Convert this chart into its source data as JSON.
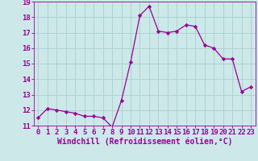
{
  "x": [
    0,
    1,
    2,
    3,
    4,
    5,
    6,
    7,
    8,
    9,
    10,
    11,
    12,
    13,
    14,
    15,
    16,
    17,
    18,
    19,
    20,
    21,
    22,
    23
  ],
  "y": [
    11.5,
    12.1,
    12.0,
    11.9,
    11.8,
    11.6,
    11.6,
    11.5,
    10.9,
    12.6,
    15.1,
    18.1,
    18.7,
    17.1,
    17.0,
    17.1,
    17.5,
    17.4,
    16.2,
    16.0,
    15.3,
    15.3,
    13.2,
    13.5
  ],
  "line_color": "#990099",
  "marker": "D",
  "marker_size": 2.2,
  "bg_color": "#cce8e8",
  "grid_color": "#aad0d0",
  "xlabel": "Windchill (Refroidissement éolien,°C)",
  "ylim": [
    11,
    19
  ],
  "xlim_min": -0.5,
  "xlim_max": 23.5,
  "yticks": [
    11,
    12,
    13,
    14,
    15,
    16,
    17,
    18,
    19
  ],
  "xticks": [
    0,
    1,
    2,
    3,
    4,
    5,
    6,
    7,
    8,
    9,
    10,
    11,
    12,
    13,
    14,
    15,
    16,
    17,
    18,
    19,
    20,
    21,
    22,
    23
  ],
  "tick_color": "#990099",
  "label_color": "#990099",
  "axis_color": "#990099",
  "font_size": 6.5,
  "xlabel_fontsize": 7.0,
  "linewidth": 0.9
}
